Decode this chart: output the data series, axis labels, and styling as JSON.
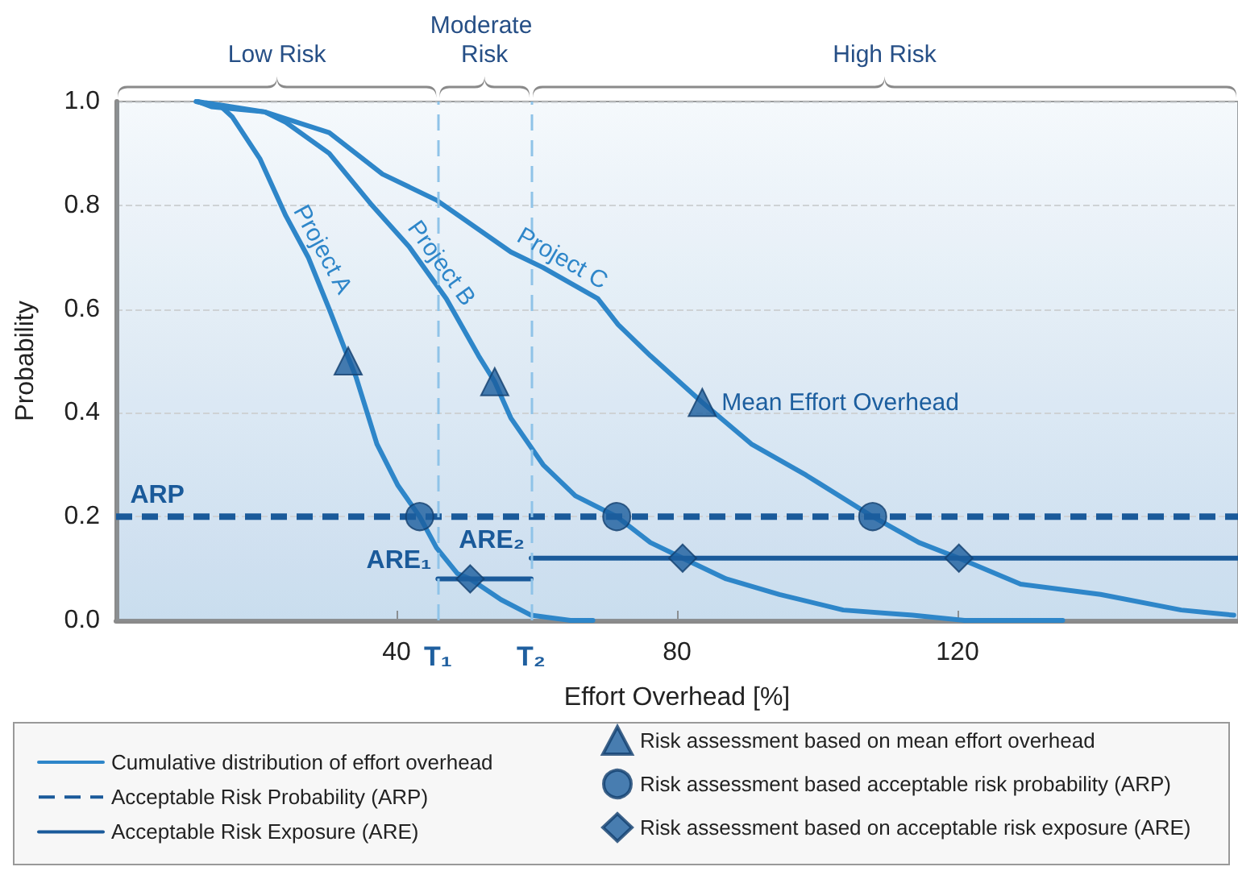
{
  "chart_data": {
    "type": "line",
    "xlabel": "Effort Overhead [%]",
    "ylabel": "Probability",
    "xlim": [
      0,
      160
    ],
    "ylim": [
      0,
      1
    ],
    "xticks": [
      40,
      80,
      120
    ],
    "yticks": [
      {
        "value": 0,
        "label": "0.0"
      },
      0.2,
      0.4,
      0.6,
      0.8,
      {
        "value": 1,
        "label": "1.0"
      }
    ],
    "grid": "y",
    "legend": "bottom",
    "series": [
      {
        "name": "Cumulative distribution of effort overhead",
        "color": "#2e86c9",
        "x": [
          11.4,
          15,
          16.6,
          20.5,
          24.2,
          27.4,
          30.4,
          32.7,
          34.2,
          37.2,
          40.2,
          43.3,
          45.7,
          48.7,
          50.5,
          54.9,
          59.2,
          64.8,
          68
        ],
        "values": [
          1,
          0.99,
          0.97,
          0.89,
          0.78,
          0.7,
          0.6,
          0.52,
          0.47,
          0.34,
          0.26,
          0.2,
          0.14,
          0.09,
          0.08,
          0.04,
          0.01,
          0,
          0
        ]
      },
      {
        "color": "#2e86c9",
        "x": [
          11.6,
          13.6,
          21.2,
          24.2,
          30.4,
          36.5,
          41.8,
          47.1,
          51.7,
          54,
          56.3,
          60.9,
          65.5,
          71.4,
          76.2,
          80.8,
          87,
          94.6,
          103.7,
          113.6,
          121,
          135
        ],
        "values": [
          1,
          0.99,
          0.98,
          0.96,
          0.9,
          0.8,
          0.72,
          0.62,
          0.51,
          0.46,
          0.39,
          0.3,
          0.24,
          0.2,
          0.15,
          0.12,
          0.08,
          0.05,
          0.02,
          0.01,
          0,
          0
        ]
      },
      {
        "color": "#2e86c9",
        "x": [
          11.6,
          21.2,
          30.4,
          38,
          45.7,
          56.3,
          60.9,
          68.7,
          71.6,
          76.2,
          83.6,
          90.6,
          98.4,
          107.9,
          114.5,
          120.2,
          129,
          140.4,
          151.9,
          159.4
        ],
        "values": [
          1,
          0.98,
          0.94,
          0.86,
          0.81,
          0.71,
          0.68,
          0.62,
          0.57,
          0.51,
          0.42,
          0.34,
          0.28,
          0.2,
          0.15,
          0.12,
          0.07,
          0.05,
          0.02,
          0.01
        ]
      },
      {
        "name": "Acceptable Risk Probability (ARP)",
        "color": "#1a5a9a",
        "line_style": "dashed",
        "x": [
          0,
          160
        ],
        "values": [
          0.2,
          0.2
        ]
      },
      {
        "name": "Acceptable Risk Exposure (ARE)",
        "color": "#1a5a9a",
        "x": [
          45.9,
          59.2
        ],
        "values": [
          0.08,
          0.08
        ]
      },
      {
        "color": "#1a5a9a",
        "x": [
          59.2,
          160
        ],
        "values": [
          0.12,
          0.12
        ]
      },
      {
        "name": "Risk assessment based on mean effort overhead",
        "type": "scatter",
        "marker": "triangle",
        "color": "#1c5e9e",
        "x": [
          33.1,
          54,
          83.6
        ],
        "values": [
          0.5,
          0.46,
          0.42
        ]
      },
      {
        "name": "Risk assessment based acceptable risk probability (ARP)",
        "type": "scatter",
        "marker": "circle",
        "color": "#1c5e9e",
        "x": [
          43.3,
          71.4,
          107.9
        ],
        "values": [
          0.2,
          0.2,
          0.2
        ]
      },
      {
        "name": "Risk assessment based on acceptable risk exposure (ARE)",
        "type": "scatter",
        "marker": "diamond",
        "color": "#1c5e9e",
        "x": [
          50.5,
          80.8,
          120.2
        ],
        "values": [
          0.08,
          0.12,
          0.12
        ]
      }
    ],
    "ref_lines": [
      {
        "axis": "x",
        "value": 45.9,
        "label": "T₁",
        "color": "#8fc3e8",
        "line_style": "dashed"
      },
      {
        "axis": "x",
        "value": 59.2,
        "label": "T₂",
        "color": "#8fc3e8",
        "line_style": "dashed"
      }
    ],
    "bands": [
      {
        "axis": "x",
        "from": 0,
        "to": 45.9,
        "label": "Low Risk"
      },
      {
        "axis": "x",
        "from": 45.9,
        "to": 59.2,
        "label": "Moderate Risk"
      },
      {
        "axis": "x",
        "from": 59.2,
        "to": 160,
        "label": "High Risk"
      }
    ],
    "annotations": [
      {
        "text": "Project A",
        "x": 27.4,
        "y": 0.7
      },
      {
        "text": "Project B",
        "x": 44.5,
        "y": 0.67
      },
      {
        "text": "Project C",
        "x": 62.5,
        "y": 0.67
      },
      {
        "text": "Mean Effort Overhead",
        "x": 83.6,
        "y": 0.42
      },
      {
        "text": "ARP",
        "x": 2,
        "y": 0.2
      },
      {
        "text": "ARE₁",
        "x": 45.9,
        "y": 0.08
      },
      {
        "text": "ARE₂",
        "x": 59.2,
        "y": 0.12
      }
    ]
  }
}
